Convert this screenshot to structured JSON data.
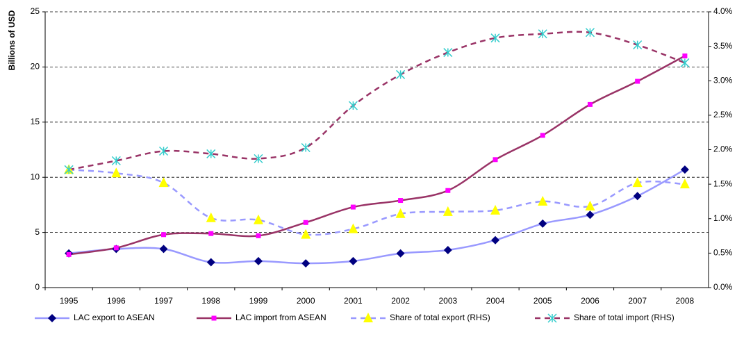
{
  "chart_data": {
    "type": "line",
    "y_label": "Billions of USD",
    "categories": [
      "1995",
      "1996",
      "1997",
      "1998",
      "1999",
      "2000",
      "2001",
      "2002",
      "2003",
      "2004",
      "2005",
      "2006",
      "2007",
      "2008"
    ],
    "series": [
      {
        "name": "LAC export to ASEAN",
        "color": "#9999ff",
        "dash": false,
        "marker": "diamond",
        "marker_color": "#000080",
        "values": [
          3.1,
          3.5,
          3.5,
          2.3,
          2.4,
          2.2,
          2.4,
          3.1,
          3.4,
          4.3,
          5.8,
          6.6,
          8.3,
          10.7
        ]
      },
      {
        "name": "LAC import from ASEAN",
        "color": "#993366",
        "dash": false,
        "marker": "square",
        "marker_color": "#ff00ff",
        "values": [
          3.0,
          3.6,
          4.8,
          4.9,
          4.7,
          5.9,
          7.3,
          7.9,
          8.8,
          11.6,
          13.8,
          16.6,
          18.7,
          21.0
        ]
      },
      {
        "name": "Share of total export (RHS)",
        "color": "#9999ff",
        "dash": true,
        "marker": "triangle",
        "marker_color": "#ffff00",
        "axis": "y2",
        "values": [
          1.71,
          1.66,
          1.52,
          1.01,
          0.98,
          0.77,
          0.85,
          1.07,
          1.1,
          1.12,
          1.25,
          1.18,
          1.52,
          1.5
        ]
      },
      {
        "name": "Share of total import (RHS)",
        "color": "#993366",
        "dash": true,
        "marker": "cross",
        "marker_color": "#33cccc",
        "axis": "y2",
        "values": [
          1.71,
          1.84,
          1.98,
          1.94,
          1.87,
          2.03,
          2.64,
          3.09,
          3.41,
          3.62,
          3.68,
          3.7,
          3.52,
          3.26
        ]
      }
    ],
    "ylim": [
      0,
      25
    ],
    "yticks": [
      0,
      5,
      10,
      15,
      20,
      25
    ],
    "y2lim": [
      0,
      4
    ],
    "y2ticks": [
      {
        "value": 0,
        "label": "0.0%"
      },
      {
        "value": 0.5,
        "label": "0.5%"
      },
      {
        "value": 1,
        "label": "1.0%"
      },
      {
        "value": 1.5,
        "label": "1.5%"
      },
      {
        "value": 2,
        "label": "2.0%"
      },
      {
        "value": 2.5,
        "label": "2.5%"
      },
      {
        "value": 3,
        "label": "3.0%"
      },
      {
        "value": 3.5,
        "label": "3.5%"
      },
      {
        "value": 4,
        "label": "4.0%"
      }
    ],
    "grid": true,
    "smooth": true,
    "legend": "bottom"
  }
}
